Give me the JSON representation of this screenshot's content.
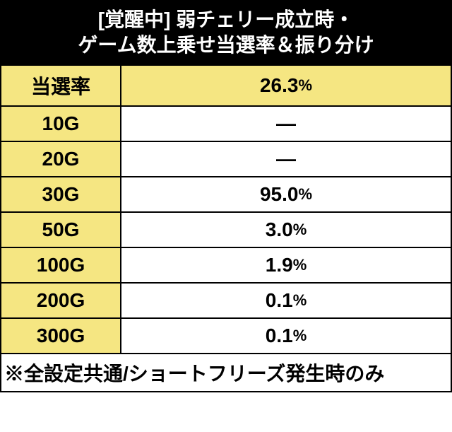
{
  "header": {
    "line1": "[覚醒中] 弱チェリー成立時・",
    "line2": "ゲーム数上乗せ当選率＆振り分け"
  },
  "win_rate": {
    "label": "当選率",
    "value": "26.3",
    "pct": "%"
  },
  "rows": [
    {
      "label": "10G",
      "value": "—",
      "is_dash": true
    },
    {
      "label": "20G",
      "value": "—",
      "is_dash": true
    },
    {
      "label": "30G",
      "value": "95.0",
      "pct": "%",
      "is_dash": false
    },
    {
      "label": "50G",
      "value": "3.0",
      "pct": "%",
      "is_dash": false
    },
    {
      "label": "100G",
      "value": "1.9",
      "pct": "%",
      "is_dash": false
    },
    {
      "label": "200G",
      "value": "0.1",
      "pct": "%",
      "is_dash": false
    },
    {
      "label": "300G",
      "value": "0.1",
      "pct": "%",
      "is_dash": false
    }
  ],
  "footer": "※全設定共通/ショートフリーズ発生時のみ",
  "colors": {
    "header_bg": "#000000",
    "header_text": "#ffffff",
    "yellow": "#f5e682",
    "white": "#ffffff",
    "border": "#000000"
  }
}
